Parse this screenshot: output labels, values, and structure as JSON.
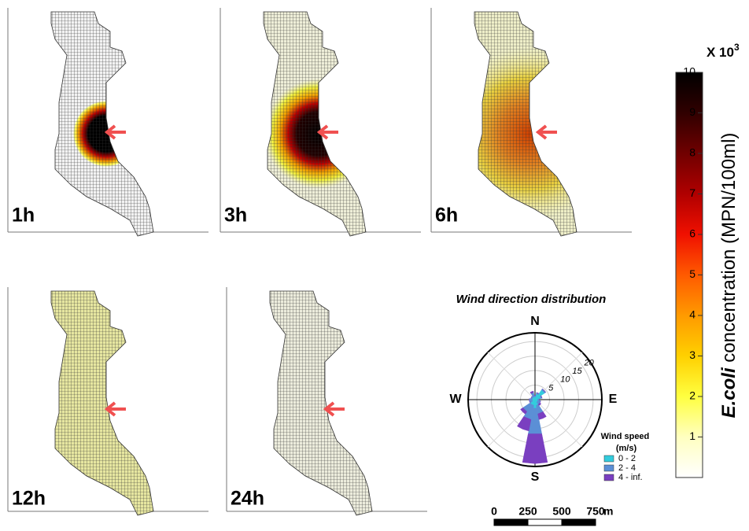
{
  "panels": [
    {
      "label": "1h"
    },
    {
      "label": "3h"
    },
    {
      "label": "6h"
    },
    {
      "label": "12h"
    },
    {
      "label": "24h"
    }
  ],
  "colorbar": {
    "multiplier": "X 10",
    "exponent": "3",
    "label_italic": "E.coli",
    "label_rest": " concentration (MPN/100ml)",
    "lim": [
      0,
      10
    ],
    "ticks": [
      1,
      2,
      3,
      4,
      5,
      6,
      7,
      8,
      9,
      10
    ]
  },
  "wind_rose": {
    "type": "wind_rose",
    "title": "Wind direction distribution",
    "directions": [
      "N",
      "E",
      "S",
      "W"
    ],
    "rlim": [
      0,
      23
    ],
    "rticks": [
      5,
      10,
      15,
      20
    ],
    "legend_title": "Wind speed (m/s)",
    "series": [
      {
        "name": "0 - 2",
        "color": "#33ccdd",
        "values": [
          1,
          2,
          4,
          2,
          1,
          1,
          1,
          2,
          3,
          2,
          2,
          1,
          1,
          1,
          1,
          1
        ]
      },
      {
        "name": "2 - 4",
        "color": "#5b8fd6",
        "values": [
          0.5,
          0.5,
          0.5,
          0.5,
          0.5,
          1,
          1,
          3,
          9,
          5,
          3,
          1,
          1,
          0.5,
          0.5,
          1.5
        ]
      },
      {
        "name": "4 - inf.",
        "color": "#7a3fc0",
        "values": [
          0,
          0,
          0,
          0,
          0,
          0,
          0.5,
          2,
          10,
          4,
          1,
          0,
          0,
          0,
          0,
          0.5
        ]
      }
    ]
  },
  "scale_bar": {
    "ticks": [
      0,
      250,
      500,
      750
    ],
    "unit": "m"
  }
}
